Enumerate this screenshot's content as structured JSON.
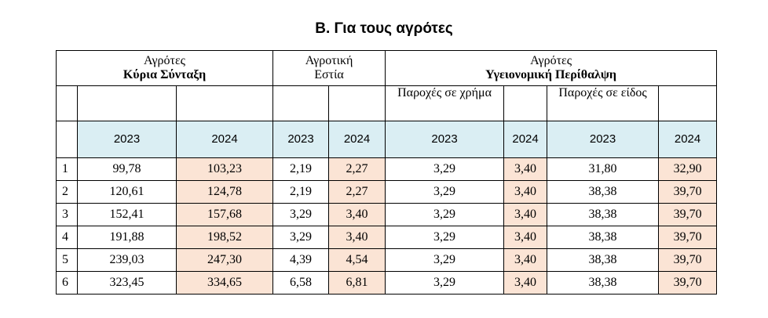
{
  "title": "Β. Για τους αγρότες",
  "groups": {
    "g1": {
      "line1": "Αγρότες",
      "line2": "Κύρια Σύνταξη"
    },
    "g2": {
      "line1": "Αγροτική",
      "line2": "Εστία"
    },
    "g3": {
      "line1": "Αγρότες",
      "line2": "Υγειονομική Περίθαλψη"
    }
  },
  "subgroups": {
    "cash": "Παροχές σε χρήμα",
    "kind": "Παροχές σε είδος"
  },
  "years": {
    "a": "2023",
    "b": "2024",
    "c": "2023",
    "d": "2024",
    "e": "2023",
    "f": "2024",
    "g": "2023",
    "h": "2024"
  },
  "rows": [
    {
      "n": "1",
      "v": [
        "99,78",
        "103,23",
        "2,19",
        "2,27",
        "3,29",
        "3,40",
        "31,80",
        "32,90"
      ]
    },
    {
      "n": "2",
      "v": [
        "120,61",
        "124,78",
        "2,19",
        "2,27",
        "3,29",
        "3,40",
        "38,38",
        "39,70"
      ]
    },
    {
      "n": "3",
      "v": [
        "152,41",
        "157,68",
        "3,29",
        "3,40",
        "3,29",
        "3,40",
        "38,38",
        "39,70"
      ]
    },
    {
      "n": "4",
      "v": [
        "191,88",
        "198,52",
        "3,29",
        "3,40",
        "3,29",
        "3,40",
        "38,38",
        "39,70"
      ]
    },
    {
      "n": "5",
      "v": [
        "239,03",
        "247,30",
        "4,39",
        "4,54",
        "3,29",
        "3,40",
        "38,38",
        "39,70"
      ]
    },
    {
      "n": "6",
      "v": [
        "323,45",
        "334,65",
        "6,58",
        "6,81",
        "3,29",
        "3,40",
        "38,38",
        "39,70"
      ]
    }
  ]
}
